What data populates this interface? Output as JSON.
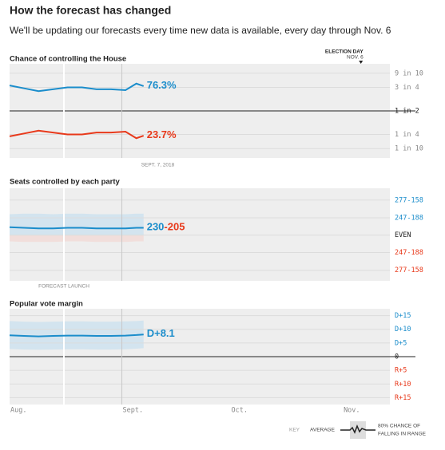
{
  "header": {
    "title": "How the forecast has changed",
    "subtitle": "We'll be updating our forecasts every time new data is available, every day through Nov. 6"
  },
  "party_colors": [
    "#1b8dcb",
    "#e8391b"
  ],
  "chart_data": [
    {
      "type": "line",
      "title": "Chance of controlling the House",
      "x": [
        "2018-08-01",
        "2018-08-05",
        "2018-08-09",
        "2018-08-13",
        "2018-08-17",
        "2018-08-21",
        "2018-08-25",
        "2018-08-29",
        "2018-09-02",
        "2018-09-05",
        "2018-09-07"
      ],
      "xlim": [
        "2018-08-01",
        "2018-11-14"
      ],
      "series": [
        {
          "color": "#1b8dcb",
          "values": [
            77,
            74,
            71,
            73,
            75,
            75,
            73,
            73,
            72,
            79,
            76.3
          ],
          "value_labels": [
            null,
            null,
            null,
            null,
            null,
            null,
            null,
            null,
            null,
            null,
            "76.3%"
          ]
        },
        {
          "color": "#e8391b",
          "values": [
            23,
            26,
            29,
            27,
            25,
            25,
            27,
            27,
            28,
            21,
            23.7
          ],
          "value_labels": [
            null,
            null,
            null,
            null,
            null,
            null,
            null,
            null,
            null,
            null,
            "23.7%"
          ]
        }
      ],
      "ylim": [
        0,
        100
      ],
      "yticks": [
        {
          "value": 90,
          "label": "9 in 10"
        },
        {
          "value": 75,
          "label": "3 in 4"
        },
        {
          "value": 50,
          "label": "1 in 2"
        },
        {
          "value": 25,
          "label": "1 in 4"
        },
        {
          "value": 10,
          "label": "1 in 10"
        }
      ],
      "midline": 50,
      "rule_at_midline": true,
      "party_tick_colors": false,
      "election_day": {
        "label": "ELECTION DAY",
        "date_label": "NOV. 6",
        "x": "2018-11-06"
      },
      "latest_label": "SEPT. 7, 2018"
    },
    {
      "type": "line",
      "title": "Seats controlled by each party",
      "x": [
        "2018-08-01",
        "2018-08-05",
        "2018-08-09",
        "2018-08-13",
        "2018-08-17",
        "2018-08-21",
        "2018-08-25",
        "2018-08-29",
        "2018-09-02",
        "2018-09-05",
        "2018-09-07"
      ],
      "xlim": [
        "2018-08-01",
        "2018-11-14"
      ],
      "series": [
        {
          "color": "#1b8dcb",
          "values": [
            231,
            230,
            229,
            229,
            230,
            230,
            229,
            229,
            229,
            230,
            230
          ],
          "value_labels": [
            null,
            null,
            null,
            null,
            null,
            null,
            null,
            null,
            null,
            null,
            "230"
          ],
          "high": [
            253,
            254,
            254,
            253,
            254,
            254,
            253,
            253,
            253,
            254,
            254
          ],
          "low": [
            207,
            206,
            206,
            206,
            207,
            207,
            206,
            206,
            206,
            207,
            207
          ]
        }
      ],
      "rep_label": "-205",
      "band_colors": [
        "#d3e4ef",
        "#f1dedb"
      ],
      "ylim": [
        140,
        297
      ],
      "yticks": [
        {
          "value": 277,
          "label": "277-158"
        },
        {
          "value": 247,
          "label": "247-188"
        },
        {
          "value": 217.5,
          "label": "EVEN"
        },
        {
          "value": 188,
          "label": "247-188"
        },
        {
          "value": 158,
          "label": "277-158"
        }
      ],
      "midline": 217.5,
      "rule_at_midline": false,
      "party_tick_colors": true,
      "launch": {
        "label": "FORECAST LAUNCH",
        "x": "2018-08-16"
      }
    },
    {
      "type": "line",
      "title": "Popular vote margin",
      "x": [
        "2018-08-01",
        "2018-08-05",
        "2018-08-09",
        "2018-08-13",
        "2018-08-17",
        "2018-08-21",
        "2018-08-25",
        "2018-08-29",
        "2018-09-02",
        "2018-09-05",
        "2018-09-07"
      ],
      "xlim": [
        "2018-08-01",
        "2018-11-14"
      ],
      "xticks": [
        {
          "value": "2018-08-01",
          "label": "Aug."
        },
        {
          "value": "2018-09-01",
          "label": "Sept."
        },
        {
          "value": "2018-10-01",
          "label": "Oct."
        },
        {
          "value": "2018-11-01",
          "label": "Nov."
        }
      ],
      "series": [
        {
          "color": "#1b8dcb",
          "values": [
            7.8,
            7.6,
            7.4,
            7.6,
            7.7,
            7.7,
            7.6,
            7.6,
            7.7,
            7.9,
            8.1
          ],
          "value_labels": [
            null,
            null,
            null,
            null,
            null,
            null,
            null,
            null,
            null,
            null,
            "D+8.1"
          ],
          "high": [
            13,
            12.8,
            12.7,
            12.8,
            12.9,
            12.9,
            12.8,
            12.8,
            12.9,
            13,
            13.2
          ],
          "low": [
            2.8,
            2.6,
            2.5,
            2.6,
            2.7,
            2.7,
            2.6,
            2.6,
            2.7,
            2.9,
            3.1
          ]
        }
      ],
      "band_colors": [
        "#d3e4ef",
        "#f1dedb"
      ],
      "ylim": [
        -17.5,
        17.5
      ],
      "yticks": [
        {
          "value": 15,
          "label": "D+15"
        },
        {
          "value": 10,
          "label": "D+10"
        },
        {
          "value": 5,
          "label": "D+5"
        },
        0,
        {
          "value": -5,
          "label": "R+5"
        },
        {
          "value": -10,
          "label": "R+10"
        },
        {
          "value": -15,
          "label": "R+15"
        }
      ],
      "midline": 0,
      "rule_at_midline": true,
      "party_tick_colors": true
    }
  ],
  "key": {
    "title": "KEY",
    "average": "AVERAGE",
    "range": [
      "80% CHANCE OF",
      "FALLING IN RANGE"
    ]
  }
}
